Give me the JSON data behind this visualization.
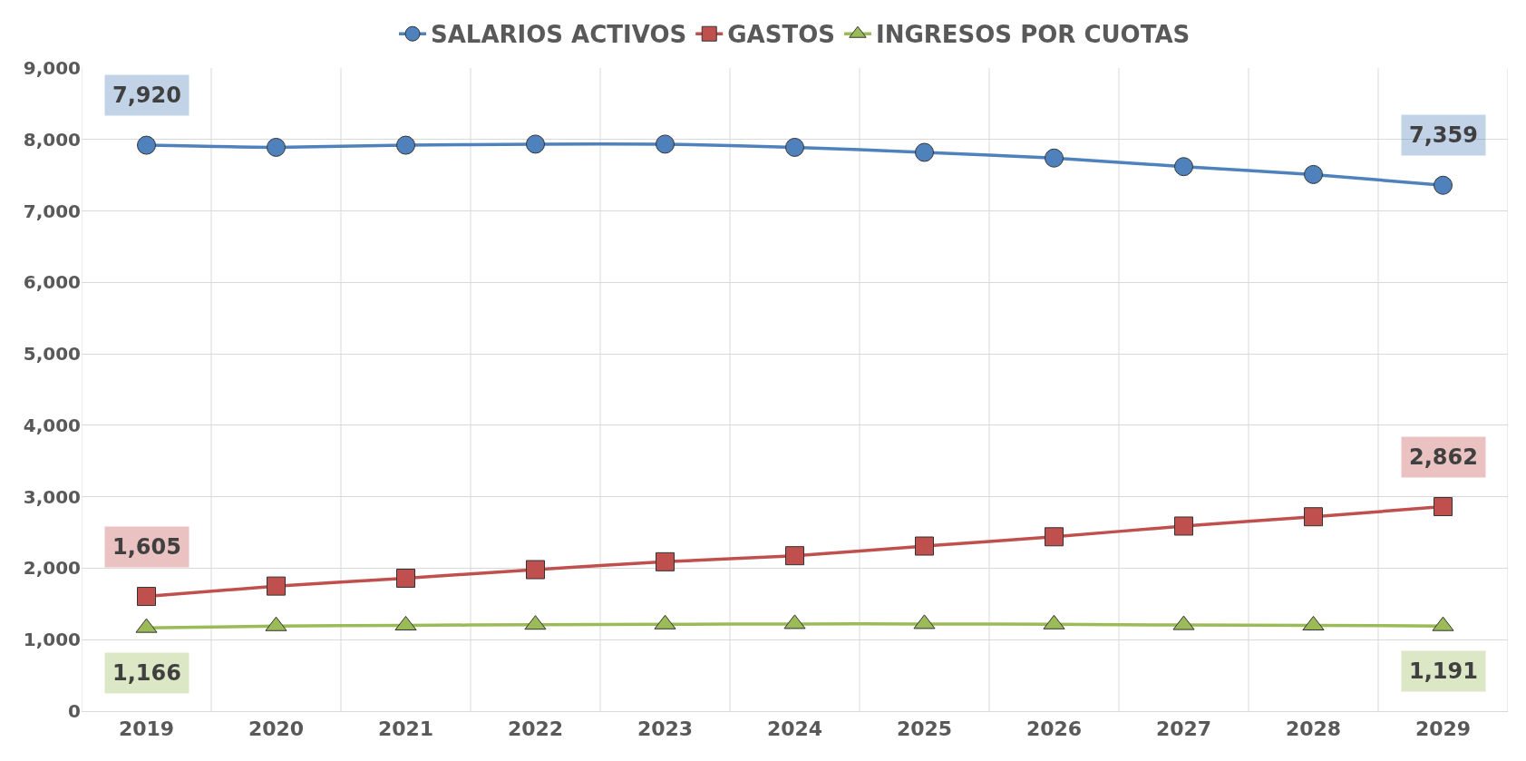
{
  "chart_data": {
    "type": "line",
    "categories": [
      "2019",
      "2020",
      "2021",
      "2022",
      "2023",
      "2024",
      "2025",
      "2026",
      "2027",
      "2028",
      "2029"
    ],
    "series": [
      {
        "name": "SALARIOS ACTIVOS",
        "color": "#4f81bd",
        "marker": "circle",
        "values": [
          7920,
          7890,
          7920,
          7935,
          7935,
          7890,
          7820,
          7740,
          7620,
          7510,
          7359
        ],
        "value_labels": [
          "7,920",
          null,
          null,
          null,
          null,
          null,
          null,
          null,
          null,
          null,
          "7,359"
        ]
      },
      {
        "name": "GASTOS",
        "color": "#c0504d",
        "marker": "square",
        "values": [
          1605,
          1750,
          1860,
          1980,
          2090,
          2175,
          2310,
          2440,
          2590,
          2720,
          2862
        ],
        "value_labels": [
          "1,605",
          null,
          null,
          null,
          null,
          null,
          null,
          null,
          null,
          null,
          "2,862"
        ]
      },
      {
        "name": "INGRESOS POR CUOTAS",
        "color": "#9bbb59",
        "marker": "triangle",
        "values": [
          1166,
          1190,
          1200,
          1210,
          1215,
          1220,
          1220,
          1215,
          1205,
          1200,
          1191
        ],
        "value_labels": [
          "1,166",
          null,
          null,
          null,
          null,
          null,
          null,
          null,
          null,
          null,
          "1,191"
        ]
      }
    ],
    "ylim": [
      0,
      9000
    ],
    "yticks": [
      {
        "value": 0,
        "label": "0"
      },
      {
        "value": 1000,
        "label": "1,000"
      },
      {
        "value": 2000,
        "label": "2,000"
      },
      {
        "value": 3000,
        "label": "3,000"
      },
      {
        "value": 4000,
        "label": "4,000"
      },
      {
        "value": 5000,
        "label": "5,000"
      },
      {
        "value": 6000,
        "label": "6,000"
      },
      {
        "value": 7000,
        "label": "7,000"
      },
      {
        "value": 8000,
        "label": "8,000"
      },
      {
        "value": 9000,
        "label": "9,000"
      }
    ],
    "grid": true,
    "legend": "top",
    "line_style": "solid"
  }
}
